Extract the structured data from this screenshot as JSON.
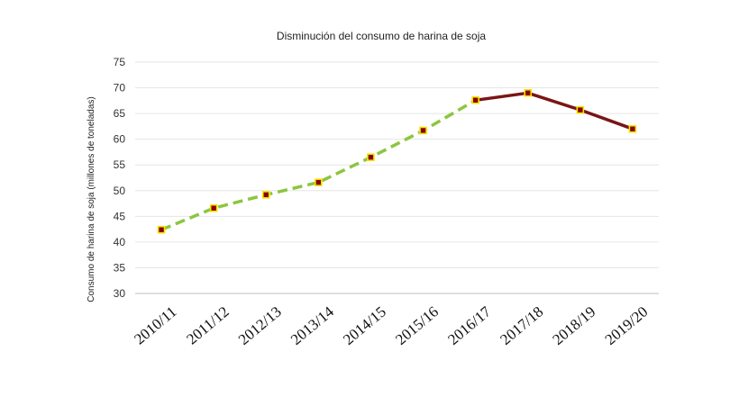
{
  "chart_data": {
    "type": "line",
    "title": "Disminución del consumo de harina de soja",
    "xlabel": "",
    "ylabel": "Consumo de harina de soja  (millones de toneladas)",
    "categories": [
      "2010/11",
      "2011/12",
      "2012/13",
      "2013/14",
      "2014/15",
      "2015/16",
      "2016/17",
      "2017/18",
      "2018/19",
      "2019/20"
    ],
    "values": [
      42.4,
      46.6,
      49.2,
      51.6,
      56.5,
      61.7,
      67.6,
      69.0,
      65.7,
      62.0
    ],
    "ylim": [
      30,
      75
    ],
    "yticks": [
      30,
      35,
      40,
      45,
      50,
      55,
      60,
      65,
      70,
      75
    ],
    "grid": true,
    "segments": [
      {
        "from": 0,
        "to": 6,
        "style": "dashed",
        "color": "#8cc63f"
      },
      {
        "from": 6,
        "to": 9,
        "style": "solid",
        "color": "#7b1515"
      }
    ],
    "marker": {
      "fill": "#8b0000",
      "stroke": "#f2e600"
    }
  }
}
